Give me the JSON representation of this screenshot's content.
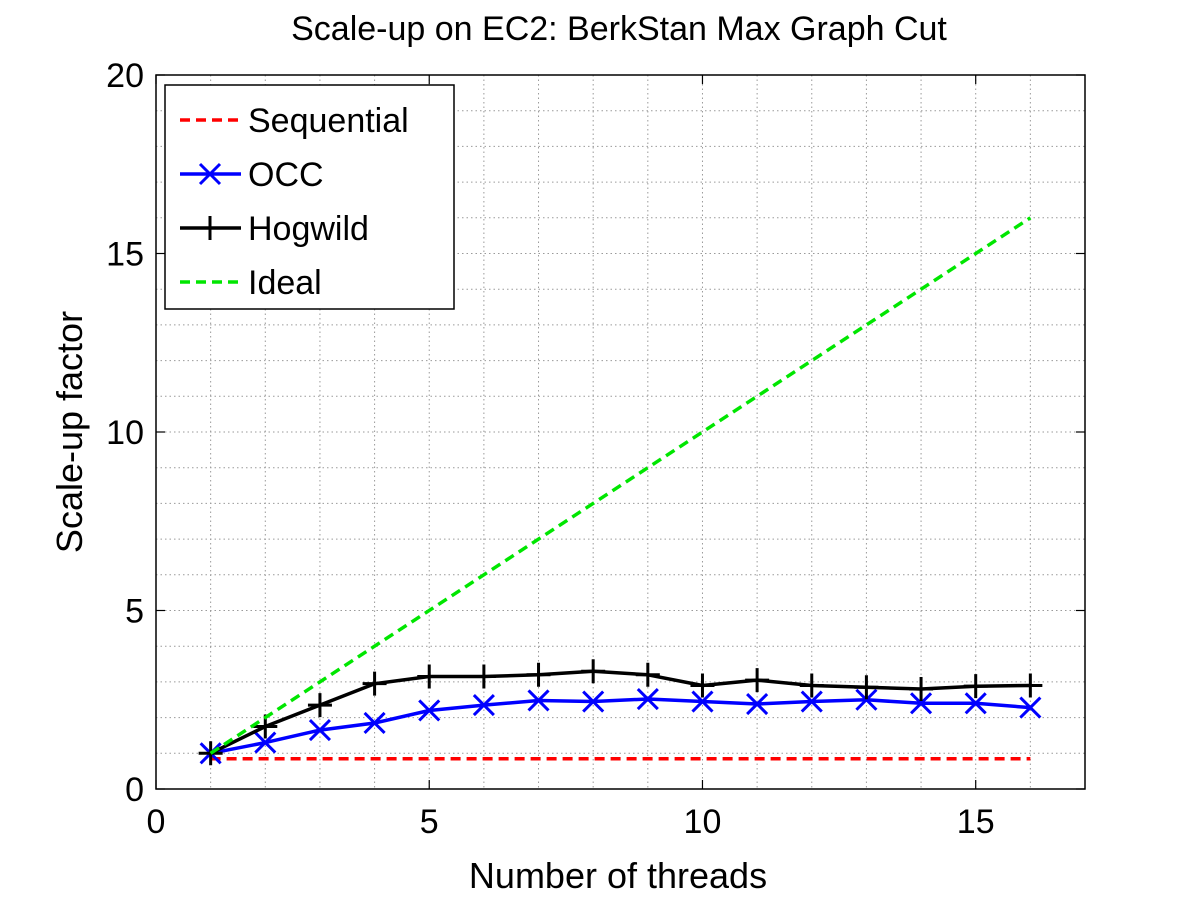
{
  "chart_data": {
    "type": "line",
    "title": "Scale-up on EC2: BerkStan Max Graph Cut",
    "xlabel": "Number of threads",
    "ylabel": "Scale-up factor",
    "xlim": [
      0,
      17
    ],
    "ylim": [
      0,
      20
    ],
    "xticks": [
      0,
      5,
      10,
      15
    ],
    "yticks": [
      0,
      5,
      10,
      15,
      20
    ],
    "grid": true,
    "legend_position": "top-left",
    "series": [
      {
        "name": "Sequential",
        "color": "#ff0000",
        "line_style": "dashed",
        "marker": "none",
        "x": [
          1,
          16
        ],
        "y": [
          0.85,
          0.85
        ]
      },
      {
        "name": "OCC",
        "color": "#0000ff",
        "line_style": "solid",
        "marker": "x",
        "x": [
          1,
          2,
          3,
          4,
          5,
          6,
          7,
          8,
          9,
          10,
          11,
          12,
          13,
          14,
          15,
          16
        ],
        "y": [
          1.0,
          1.3,
          1.65,
          1.85,
          2.2,
          2.35,
          2.48,
          2.45,
          2.52,
          2.45,
          2.38,
          2.45,
          2.5,
          2.4,
          2.4,
          2.28
        ]
      },
      {
        "name": "Hogwild",
        "color": "#000000",
        "line_style": "solid",
        "marker": "plus",
        "x": [
          1,
          2,
          3,
          4,
          5,
          6,
          7,
          8,
          9,
          10,
          11,
          12,
          13,
          14,
          15,
          16
        ],
        "y": [
          1.0,
          1.75,
          2.35,
          2.95,
          3.15,
          3.15,
          3.2,
          3.3,
          3.2,
          2.9,
          3.05,
          2.9,
          2.85,
          2.8,
          2.88,
          2.9
        ]
      },
      {
        "name": "Ideal",
        "color": "#00e600",
        "line_style": "dashed",
        "marker": "none",
        "x": [
          1,
          16
        ],
        "y": [
          1,
          16
        ]
      }
    ]
  }
}
